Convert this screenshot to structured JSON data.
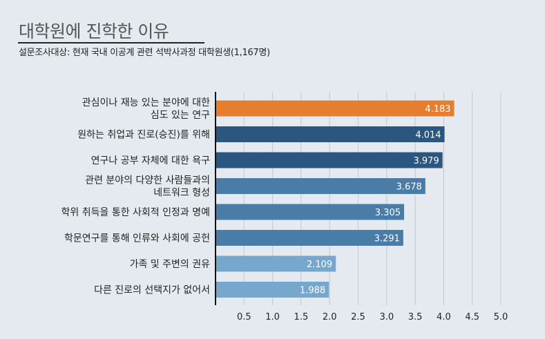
{
  "title": "대학원에 진학한 이유",
  "subtitle": "설문조사대상: 현재 국내 이공계 관련 석박사과정 대학원생(1,167명)",
  "chart_data": {
    "type": "bar",
    "orientation": "horizontal",
    "title": "대학원에 진학한 이유",
    "subtitle": "설문조사대상: 현재 국내 이공계 관련 석박사과정 대학원생(1,167명)",
    "categories": [
      [
        "관심이나 재능 있는 분야에 대한",
        "심도 있는 연구"
      ],
      [
        "원하는 취업과 진로(승진)를 위해"
      ],
      [
        "연구나 공부 자체에 대한 욕구"
      ],
      [
        "관련 분야의 다양한 사람들과의",
        "네트워크 형성"
      ],
      [
        "학위 취득을 통한 사회적 인정과 명예"
      ],
      [
        "학문연구를 통해 인류와 사회에 공헌"
      ],
      [
        "가족 및 주변의 권유"
      ],
      [
        "다른 진로의 선택지가 없어서"
      ]
    ],
    "values": [
      4.183,
      4.014,
      3.979,
      3.678,
      3.305,
      3.291,
      2.109,
      1.988
    ],
    "value_labels": [
      "4.183",
      "4.014",
      "3.979",
      "3.678",
      "3.305",
      "3.291",
      "2.109",
      "1.988"
    ],
    "colors": [
      "#e67e30",
      "#2b5680",
      "#2b5680",
      "#4a7ca8",
      "#4a7ca8",
      "#4a7ca8",
      "#77a7cc",
      "#77a7cc"
    ],
    "xlim": [
      0,
      5.0
    ],
    "xticks": [
      "0.5",
      "1.0",
      "1.5",
      "2.0",
      "2.5",
      "3.0",
      "3.5",
      "4.0",
      "4.5",
      "5.0"
    ],
    "grid": true,
    "xlabel": "",
    "ylabel": ""
  }
}
